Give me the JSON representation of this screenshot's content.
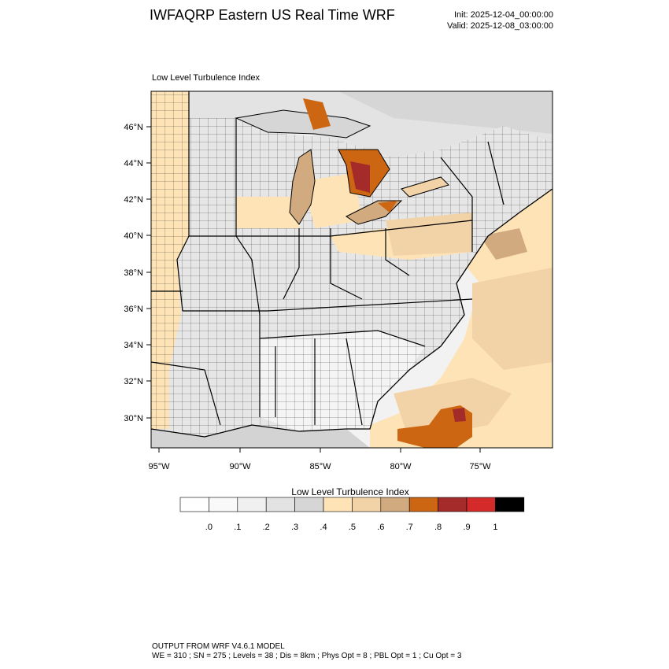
{
  "header": {
    "title": "IWFAQRP Eastern US Real Time WRF",
    "init": "Init: 2025-12-04_00:00:00",
    "valid": "Valid: 2025-12-08_03:00:00"
  },
  "map": {
    "subtitle": "Low Level Turbulence Index",
    "lat_labels": [
      "46°N",
      "44°N",
      "42°N",
      "40°N",
      "38°N",
      "36°N",
      "34°N",
      "32°N",
      "30°N"
    ],
    "lon_labels": [
      "95°W",
      "90°W",
      "85°W",
      "80°W",
      "75°W"
    ],
    "colors": {
      "water_gray": "#d3d3d3",
      "land_light": "#f2f2f2",
      "tan_light": "#fde3b5",
      "tan_mid": "#f2d3a7",
      "brown": "#d2aa80",
      "orange": "#cc6612",
      "dark_red": "#a52a2a",
      "border": "#000000"
    }
  },
  "colorbar": {
    "title": "Low Level Turbulence Index",
    "labels": [
      ".0",
      ".1",
      ".2",
      ".3",
      ".4",
      ".5",
      ".6",
      ".7",
      ".8",
      ".9",
      "1"
    ],
    "colors": [
      "#ffffff",
      "#f9f9f9",
      "#f0f0f0",
      "#e3e3e3",
      "#d6d6d6",
      "#fde3b5",
      "#f2d3a7",
      "#d2aa80",
      "#cc6612",
      "#a52a2a",
      "#d42a2a",
      "#000000"
    ]
  },
  "footer": {
    "line1": "OUTPUT FROM WRF V4.6.1 MODEL",
    "line2": "WE = 310 ; SN = 275 ; Levels = 38 ; Dis = 8km ; Phys Opt = 8 ; PBL Opt = 1 ; Cu Opt = 3"
  }
}
